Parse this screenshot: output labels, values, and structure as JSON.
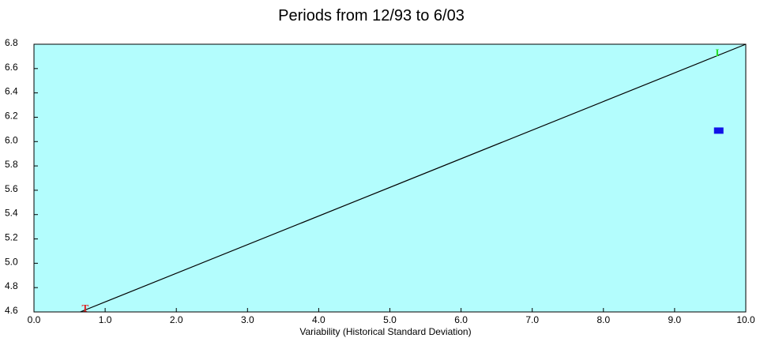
{
  "chart_data": {
    "type": "scatter",
    "title": "Periods from 12/93 to 6/03",
    "xlabel": "Variability (Historical Standard Deviation)",
    "ylabel": "",
    "xlim": [
      0.0,
      10.0
    ],
    "ylim": [
      4.6,
      6.8
    ],
    "x_ticks": [
      "0.0",
      "1.0",
      "2.0",
      "3.0",
      "4.0",
      "5.0",
      "6.0",
      "7.0",
      "8.0",
      "9.0",
      "10.0"
    ],
    "y_ticks": [
      "4.6",
      "4.8",
      "5.0",
      "5.2",
      "5.4",
      "5.6",
      "5.8",
      "6.0",
      "6.2",
      "6.4",
      "6.6",
      "6.8"
    ],
    "grid": false,
    "plot_background": "#b3fdfd",
    "line": {
      "x": [
        0.65,
        10.0
      ],
      "y": [
        4.6,
        6.8
      ],
      "color": "#000000"
    },
    "points": [
      {
        "label": "T",
        "x": 0.72,
        "y": 4.63,
        "color": "#e02020",
        "marker": "glyph"
      },
      {
        "label": "I",
        "x": 9.6,
        "y": 6.73,
        "color": "#22dd22",
        "marker": "glyph"
      },
      {
        "label": "",
        "x": 9.62,
        "y": 6.09,
        "color": "#1212e8",
        "marker": "square"
      }
    ]
  }
}
